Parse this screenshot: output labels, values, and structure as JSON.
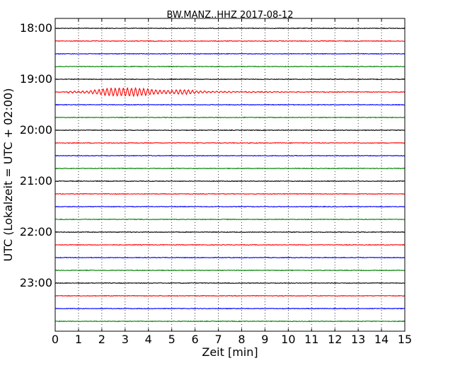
{
  "chart_data": {
    "type": "line",
    "title": "BW.MANZ..HHZ 2017-08-12",
    "xlabel": "Zeit  [min]",
    "ylabel": "UTC (Lokalzeit = UTC + 02:00)",
    "xlim": [
      0,
      15
    ],
    "x_ticks": [
      "0",
      "1",
      "2",
      "3",
      "4",
      "5",
      "6",
      "7",
      "8",
      "9",
      "10",
      "11",
      "12",
      "13",
      "14",
      "15"
    ],
    "y_ticks": [
      "18:00",
      "19:00",
      "20:00",
      "21:00",
      "22:00",
      "23:00"
    ],
    "grid": "vertical dotted at each minute",
    "trace_colors": [
      "#000000",
      "#ff0000",
      "#0000ff",
      "#008000"
    ],
    "traces": [
      {
        "start": "18:00",
        "color": "#000000"
      },
      {
        "start": "18:15",
        "color": "#ff0000"
      },
      {
        "start": "18:30",
        "color": "#0000ff"
      },
      {
        "start": "18:45",
        "color": "#008000"
      },
      {
        "start": "19:00",
        "color": "#000000"
      },
      {
        "start": "19:15",
        "color": "#ff0000",
        "event_minutes": [
          0.5,
          6.5
        ],
        "peak_minute": 3.3
      },
      {
        "start": "19:30",
        "color": "#0000ff"
      },
      {
        "start": "19:45",
        "color": "#008000"
      },
      {
        "start": "20:00",
        "color": "#000000"
      },
      {
        "start": "20:15",
        "color": "#ff0000"
      },
      {
        "start": "20:30",
        "color": "#0000ff"
      },
      {
        "start": "20:45",
        "color": "#008000"
      },
      {
        "start": "21:00",
        "color": "#000000"
      },
      {
        "start": "21:15",
        "color": "#ff0000"
      },
      {
        "start": "21:30",
        "color": "#0000ff"
      },
      {
        "start": "21:45",
        "color": "#008000"
      },
      {
        "start": "22:00",
        "color": "#000000"
      },
      {
        "start": "22:15",
        "color": "#ff0000"
      },
      {
        "start": "22:30",
        "color": "#0000ff"
      },
      {
        "start": "22:45",
        "color": "#008000"
      },
      {
        "start": "23:00",
        "color": "#000000"
      },
      {
        "start": "23:15",
        "color": "#ff0000"
      },
      {
        "start": "23:30",
        "color": "#0000ff"
      },
      {
        "start": "23:45",
        "color": "#008000"
      }
    ]
  }
}
